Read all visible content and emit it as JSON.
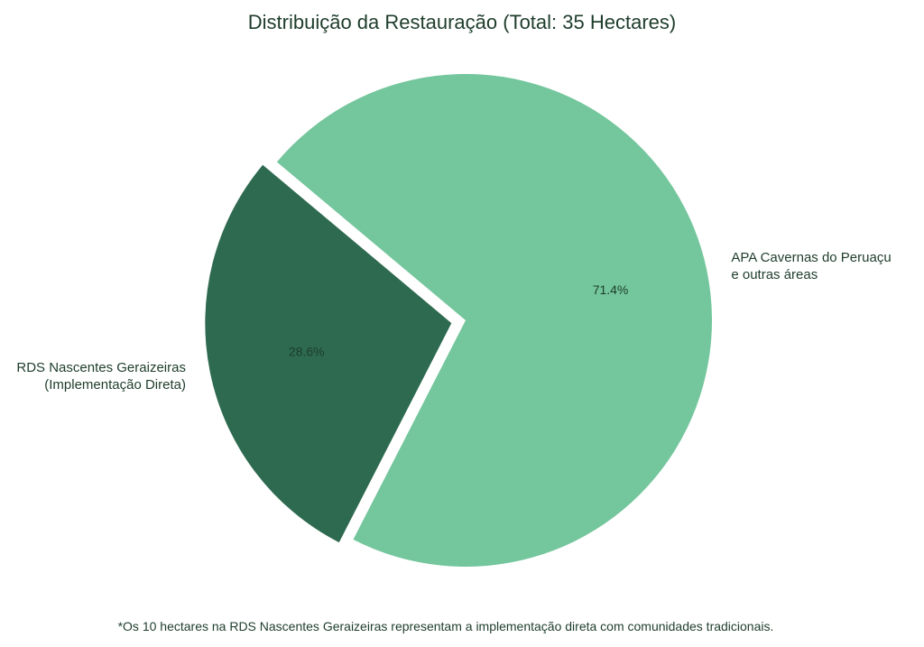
{
  "chart_data": {
    "type": "pie",
    "title": "Distribuição da Restauração (Total: 35 Hectares)",
    "total_label": "35 Hectares",
    "slices": [
      {
        "name": "RDS Nascentes Geraizeiras (Implementação Direta)",
        "label_lines": [
          "RDS Nascentes Geraizeiras",
          "(Implementação Direta)"
        ],
        "value": 10,
        "percent_label": "28.6%",
        "color": "#2d6a4f",
        "exploded": true
      },
      {
        "name": "APA Cavernas do Peruaçu e outras áreas",
        "label_lines": [
          "APA Cavernas do Peruaçu",
          "e outras áreas"
        ],
        "value": 25,
        "percent_label": "71.4%",
        "color": "#74c69d",
        "exploded": false
      }
    ],
    "start_angle_deg": 140,
    "legend": "none"
  },
  "footnote": "*Os 10 hectares na RDS Nascentes Geraizeiras representam a implementação direta com comunidades tradicionais."
}
